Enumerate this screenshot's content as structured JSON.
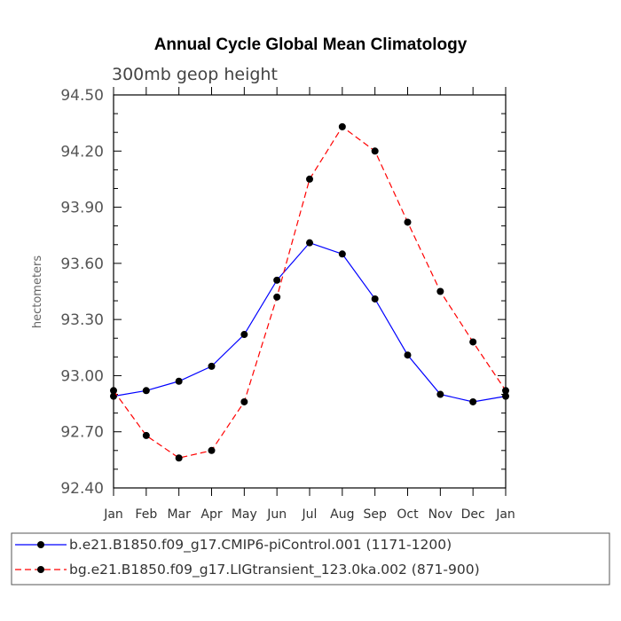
{
  "chart_data": {
    "type": "line",
    "title": "Annual Cycle Global Mean Climatology",
    "subtitle": "300mb geop height",
    "ylabel": "hectometers",
    "xlabel": "",
    "categories": [
      "Jan",
      "Feb",
      "Mar",
      "Apr",
      "May",
      "Jun",
      "Jul",
      "Aug",
      "Sep",
      "Oct",
      "Nov",
      "Dec",
      "Jan"
    ],
    "ylim": [
      92.4,
      94.5
    ],
    "yticks": [
      "94.50",
      "94.20",
      "93.90",
      "93.60",
      "93.30",
      "93.00",
      "92.70",
      "92.40"
    ],
    "legend_position": "bottom",
    "series": [
      {
        "name": "b.e21.B1850.f09_g17.CMIP6-piControl.001 (1171-1200)",
        "color": "#0000ff",
        "dash": "solid",
        "values": [
          92.89,
          92.92,
          92.97,
          93.05,
          93.22,
          93.51,
          93.71,
          93.65,
          93.41,
          93.11,
          92.9,
          92.86,
          92.89
        ]
      },
      {
        "name": "bg.e21.B1850.f09_g17.LIGtransient_123.0ka.002 (871-900)",
        "color": "#ff0000",
        "dash": "dashed",
        "values": [
          92.92,
          92.68,
          92.56,
          92.6,
          92.86,
          93.42,
          94.05,
          94.33,
          94.2,
          93.82,
          93.45,
          93.18,
          92.92
        ]
      }
    ]
  }
}
